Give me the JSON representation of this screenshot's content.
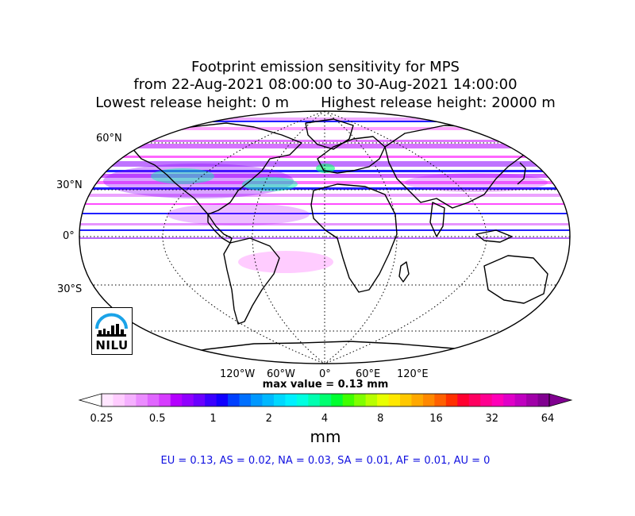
{
  "title": {
    "line1": "Footprint emission sensitivity for MPS",
    "line2": "from 22-Aug-2021 08:00:00 to 30-Aug-2021 14:00:00",
    "line3": "Lowest release height: 0 m       Highest release height: 20000 m"
  },
  "map": {
    "projection": "Robinson",
    "lat_labels": [
      "60°N",
      "30°N",
      "0°",
      "30°S"
    ],
    "lon_labels": [
      "120°W",
      "60°W",
      "0°",
      "60°E",
      "120°E"
    ],
    "logo_text": "NILU",
    "colors": {
      "coast": "#000000",
      "grid": "#000000",
      "plume_purple": "#8a00ff",
      "plume_magenta": "#ff00ff",
      "plume_blue": "#2020ff",
      "plume_green": "#00ff66"
    }
  },
  "max_value_text": "max value = 0.13 mm",
  "colorbar": {
    "ticks": [
      "0.25",
      "0.5",
      "1",
      "2",
      "4",
      "8",
      "16",
      "32",
      "64"
    ],
    "units": "mm",
    "colors": [
      "#ffe6ff",
      "#ffccff",
      "#f5b0ff",
      "#eb8cff",
      "#e066ff",
      "#d63cff",
      "#b400ff",
      "#9000ff",
      "#6a00ff",
      "#3a00ff",
      "#1000ff",
      "#0040ff",
      "#0070ff",
      "#0098ff",
      "#00b8ff",
      "#00d8ff",
      "#00f0ff",
      "#00ffe0",
      "#00ffb0",
      "#00ff70",
      "#00ff30",
      "#40ff00",
      "#80ff00",
      "#b8ff00",
      "#e8ff00",
      "#ffe800",
      "#ffc800",
      "#ffa800",
      "#ff8800",
      "#ff6000",
      "#ff3000",
      "#ff0030",
      "#ff0060",
      "#ff0090",
      "#ff00b8",
      "#e000c8",
      "#c000c0",
      "#a000a8",
      "#800090"
    ]
  },
  "regions_text": "EU = 0.13,  AS = 0.02,  NA = 0.03,  SA = 0.01,  AF = 0.01,  AU = 0"
}
